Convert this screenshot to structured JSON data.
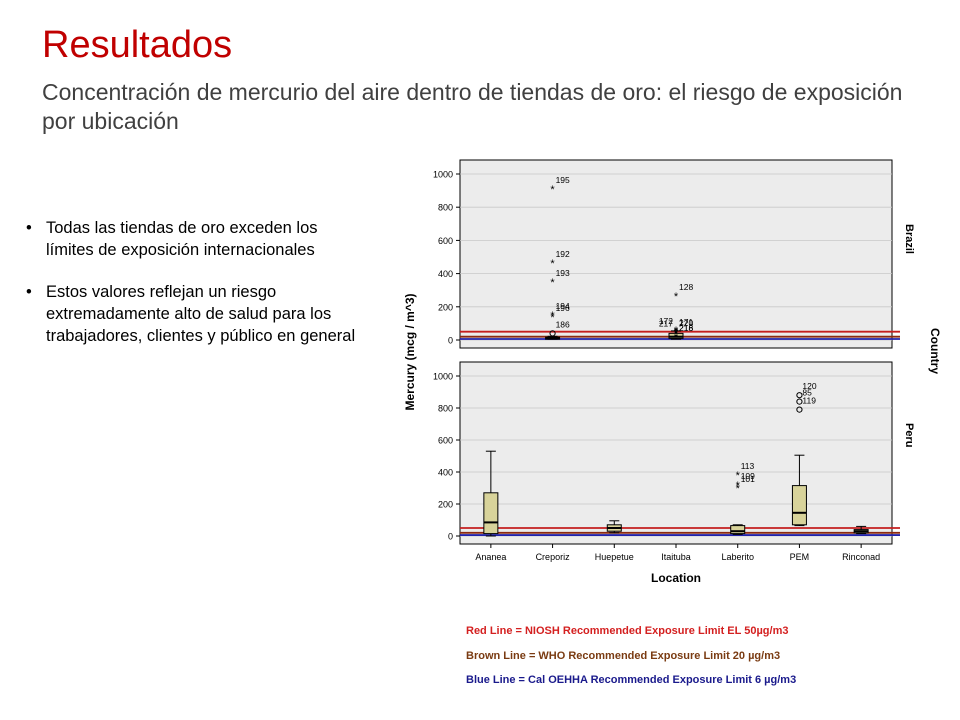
{
  "slide": {
    "title": "Resultados",
    "subtitle": "Concentración de mercurio del aire dentro de tiendas de oro: el riesgo de exposición por ubicación",
    "bullets": [
      "Todas las tiendas de oro exceden los límites de exposición internacionales",
      "Estos valores reflejan un riesgo extremadamente alto de salud para los trabajadores, clientes y público en general"
    ],
    "legend": [
      {
        "text": "Red Line = NIOSH Recommended Exposure Limit EL 50µg/m3",
        "color": "#d42020"
      },
      {
        "text": "Brown Line = WHO Recommended Exposure Limit 20 µg/m3",
        "color": "#7a3b12"
      },
      {
        "text": "Blue Line = Cal OEHHA Recommended Exposure Limit 6 µg/m3",
        "color": "#1a1a8c"
      }
    ]
  },
  "chart_data": {
    "type": "box",
    "xlabel": "Location",
    "ylabel": "Mercury (mcg / m^3)",
    "facet_label": "Country",
    "categories": [
      "Ananea",
      "Creporiz",
      "Huepetue",
      "Itaituba",
      "Laberito",
      "PEM",
      "Rinconad"
    ],
    "ylim": [
      0,
      1000
    ],
    "yticks": [
      0,
      200,
      400,
      600,
      800,
      1000
    ],
    "reference_lines": [
      {
        "name": "Red Line",
        "value": 50,
        "color": "#c41e1e"
      },
      {
        "name": "Brown Line",
        "value": 20,
        "color": "#8b2a10"
      },
      {
        "name": "Blue Line",
        "value": 6,
        "color": "#2222aa"
      }
    ],
    "panels": [
      {
        "country": "Brazil",
        "boxes": [
          {
            "category": "Creporiz",
            "min": 5,
            "q1": 8,
            "median": 12,
            "q3": 17,
            "max": 22
          },
          {
            "category": "Itaituba",
            "min": 5,
            "q1": 10,
            "median": 20,
            "q3": 40,
            "max": 55
          }
        ],
        "outliers": [
          {
            "category": "Creporiz",
            "value": 910,
            "label": "195",
            "marker": "star"
          },
          {
            "category": "Creporiz",
            "value": 465,
            "label": "192",
            "marker": "star"
          },
          {
            "category": "Creporiz",
            "value": 350,
            "label": "193",
            "marker": "star"
          },
          {
            "category": "Creporiz",
            "value": 150,
            "label": "194",
            "marker": "star"
          },
          {
            "category": "Creporiz",
            "value": 140,
            "label": "196",
            "marker": "star"
          },
          {
            "category": "Creporiz",
            "value": 40,
            "label": "186",
            "marker": "circle"
          },
          {
            "category": "Itaituba",
            "value": 265,
            "label": "128",
            "marker": "star"
          },
          {
            "category": "Itaituba",
            "value": 60,
            "label": "172",
            "marker": "star"
          },
          {
            "category": "Itaituba",
            "value": 55,
            "label": "171",
            "marker": "star"
          },
          {
            "category": "Itaituba",
            "value": 48,
            "label": "220",
            "marker": "star"
          },
          {
            "category": "Itaituba",
            "value": 45,
            "label": "217",
            "marker": "star"
          },
          {
            "category": "Itaituba",
            "value": 42,
            "label": "218",
            "marker": "star"
          },
          {
            "category": "Itaituba",
            "value": 18,
            "label": "216",
            "marker": "star"
          }
        ]
      },
      {
        "country": "Peru",
        "boxes": [
          {
            "category": "Ananea",
            "min": 0,
            "q1": 15,
            "median": 85,
            "q3": 270,
            "max": 530
          },
          {
            "category": "Huepetue",
            "min": 20,
            "q1": 30,
            "median": 50,
            "q3": 70,
            "max": 95
          },
          {
            "category": "Laberito",
            "min": 10,
            "q1": 15,
            "median": 30,
            "q3": 65,
            "max": 70
          },
          {
            "category": "PEM",
            "min": 65,
            "q1": 70,
            "median": 145,
            "q3": 315,
            "max": 505
          },
          {
            "category": "Rinconad",
            "min": 15,
            "q1": 20,
            "median": 30,
            "q3": 40,
            "max": 60
          }
        ],
        "outliers": [
          {
            "category": "Laberito",
            "value": 380,
            "label": "113",
            "marker": "star"
          },
          {
            "category": "Laberito",
            "value": 320,
            "label": "109",
            "marker": "star"
          },
          {
            "category": "Laberito",
            "value": 300,
            "label": "101",
            "marker": "star"
          },
          {
            "category": "PEM",
            "value": 880,
            "label": "120",
            "marker": "circle"
          },
          {
            "category": "PEM",
            "value": 840,
            "label": "85",
            "marker": "circle"
          },
          {
            "category": "PEM",
            "value": 790,
            "label": "119",
            "marker": "circle"
          }
        ]
      }
    ]
  }
}
